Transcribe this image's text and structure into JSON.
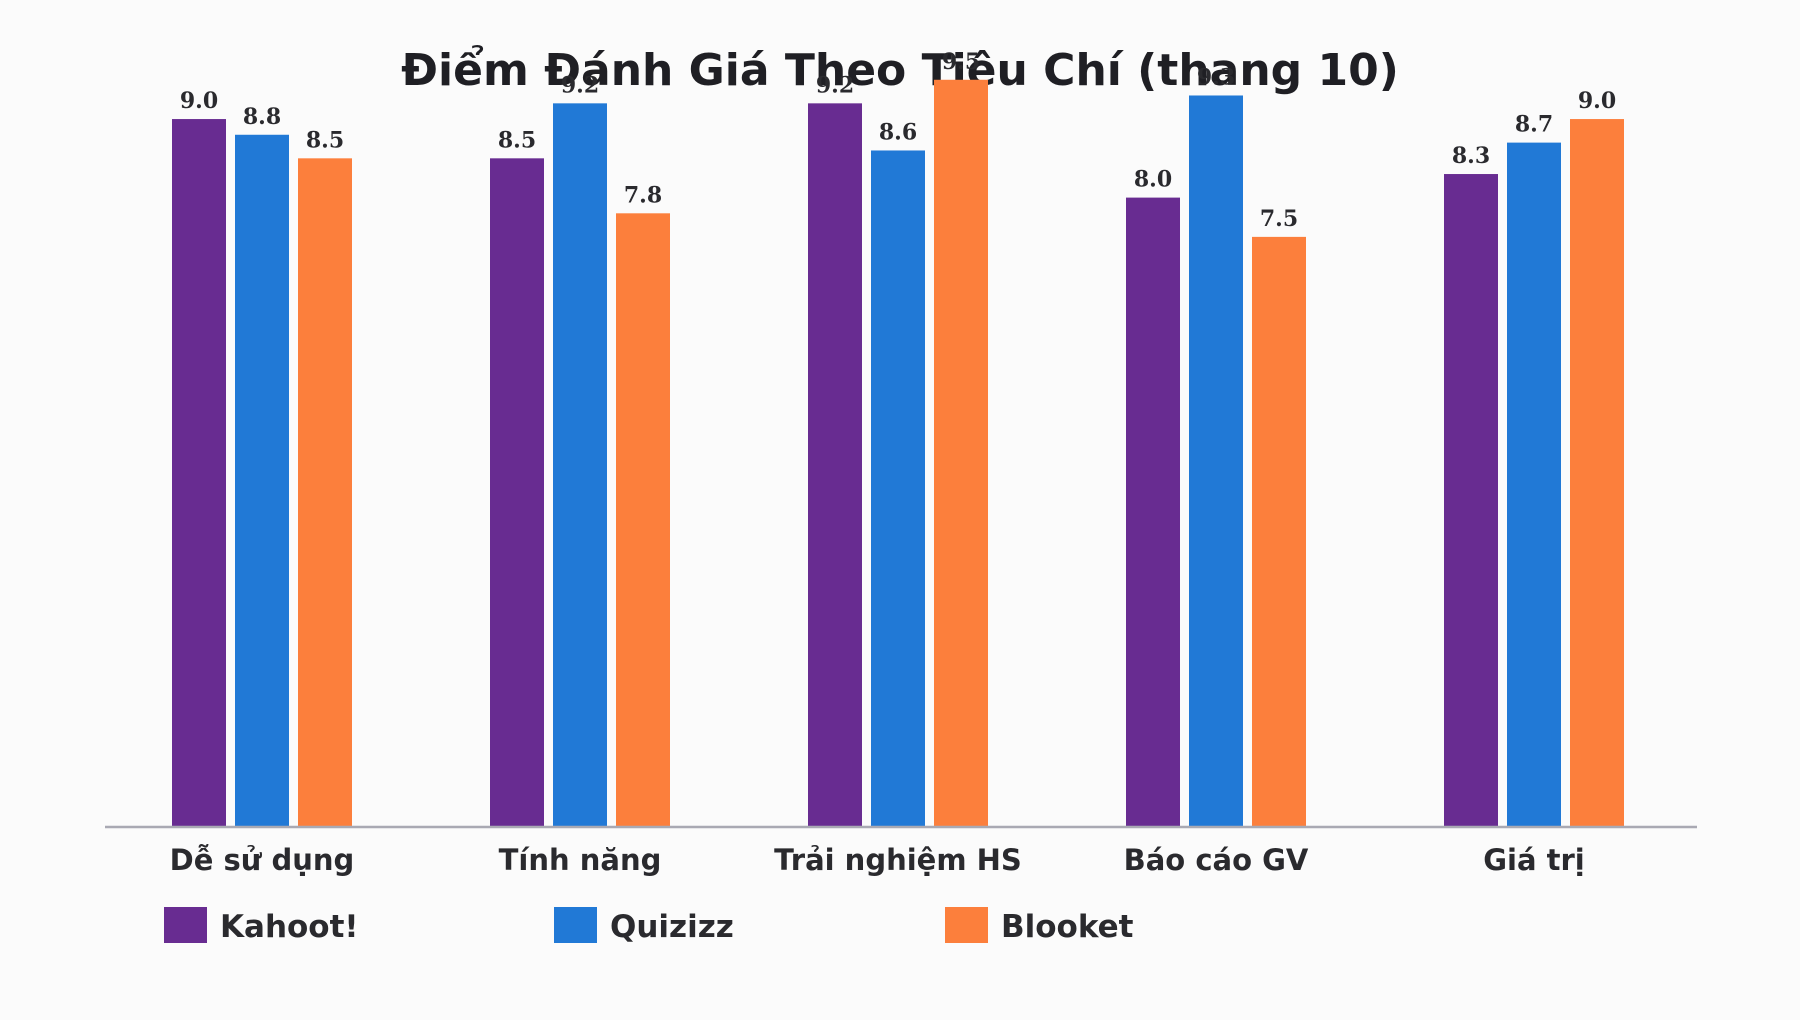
{
  "chart_data": {
    "type": "bar",
    "title": "Điểm Đánh Giá Theo Tiêu Chí (thang 10)",
    "categories": [
      "Dễ sử dụng",
      "Tính năng",
      "Trải nghiệm HS",
      "Báo cáo GV",
      "Giá trị"
    ],
    "series": [
      {
        "name": "Kahoot!",
        "color": "#682c91",
        "values": [
          9.0,
          8.5,
          9.2,
          8.0,
          8.3
        ]
      },
      {
        "name": "Quizizz",
        "color": "#2179d6",
        "values": [
          8.8,
          9.2,
          8.6,
          9.3,
          8.7
        ]
      },
      {
        "name": "Blooket",
        "color": "#fc7f3c",
        "values": [
          8.5,
          7.8,
          9.5,
          7.5,
          9.0
        ]
      }
    ],
    "ylim": [
      0,
      10
    ],
    "xlabel": "",
    "ylabel": "",
    "grid": false,
    "legend_position": "bottom-left"
  }
}
